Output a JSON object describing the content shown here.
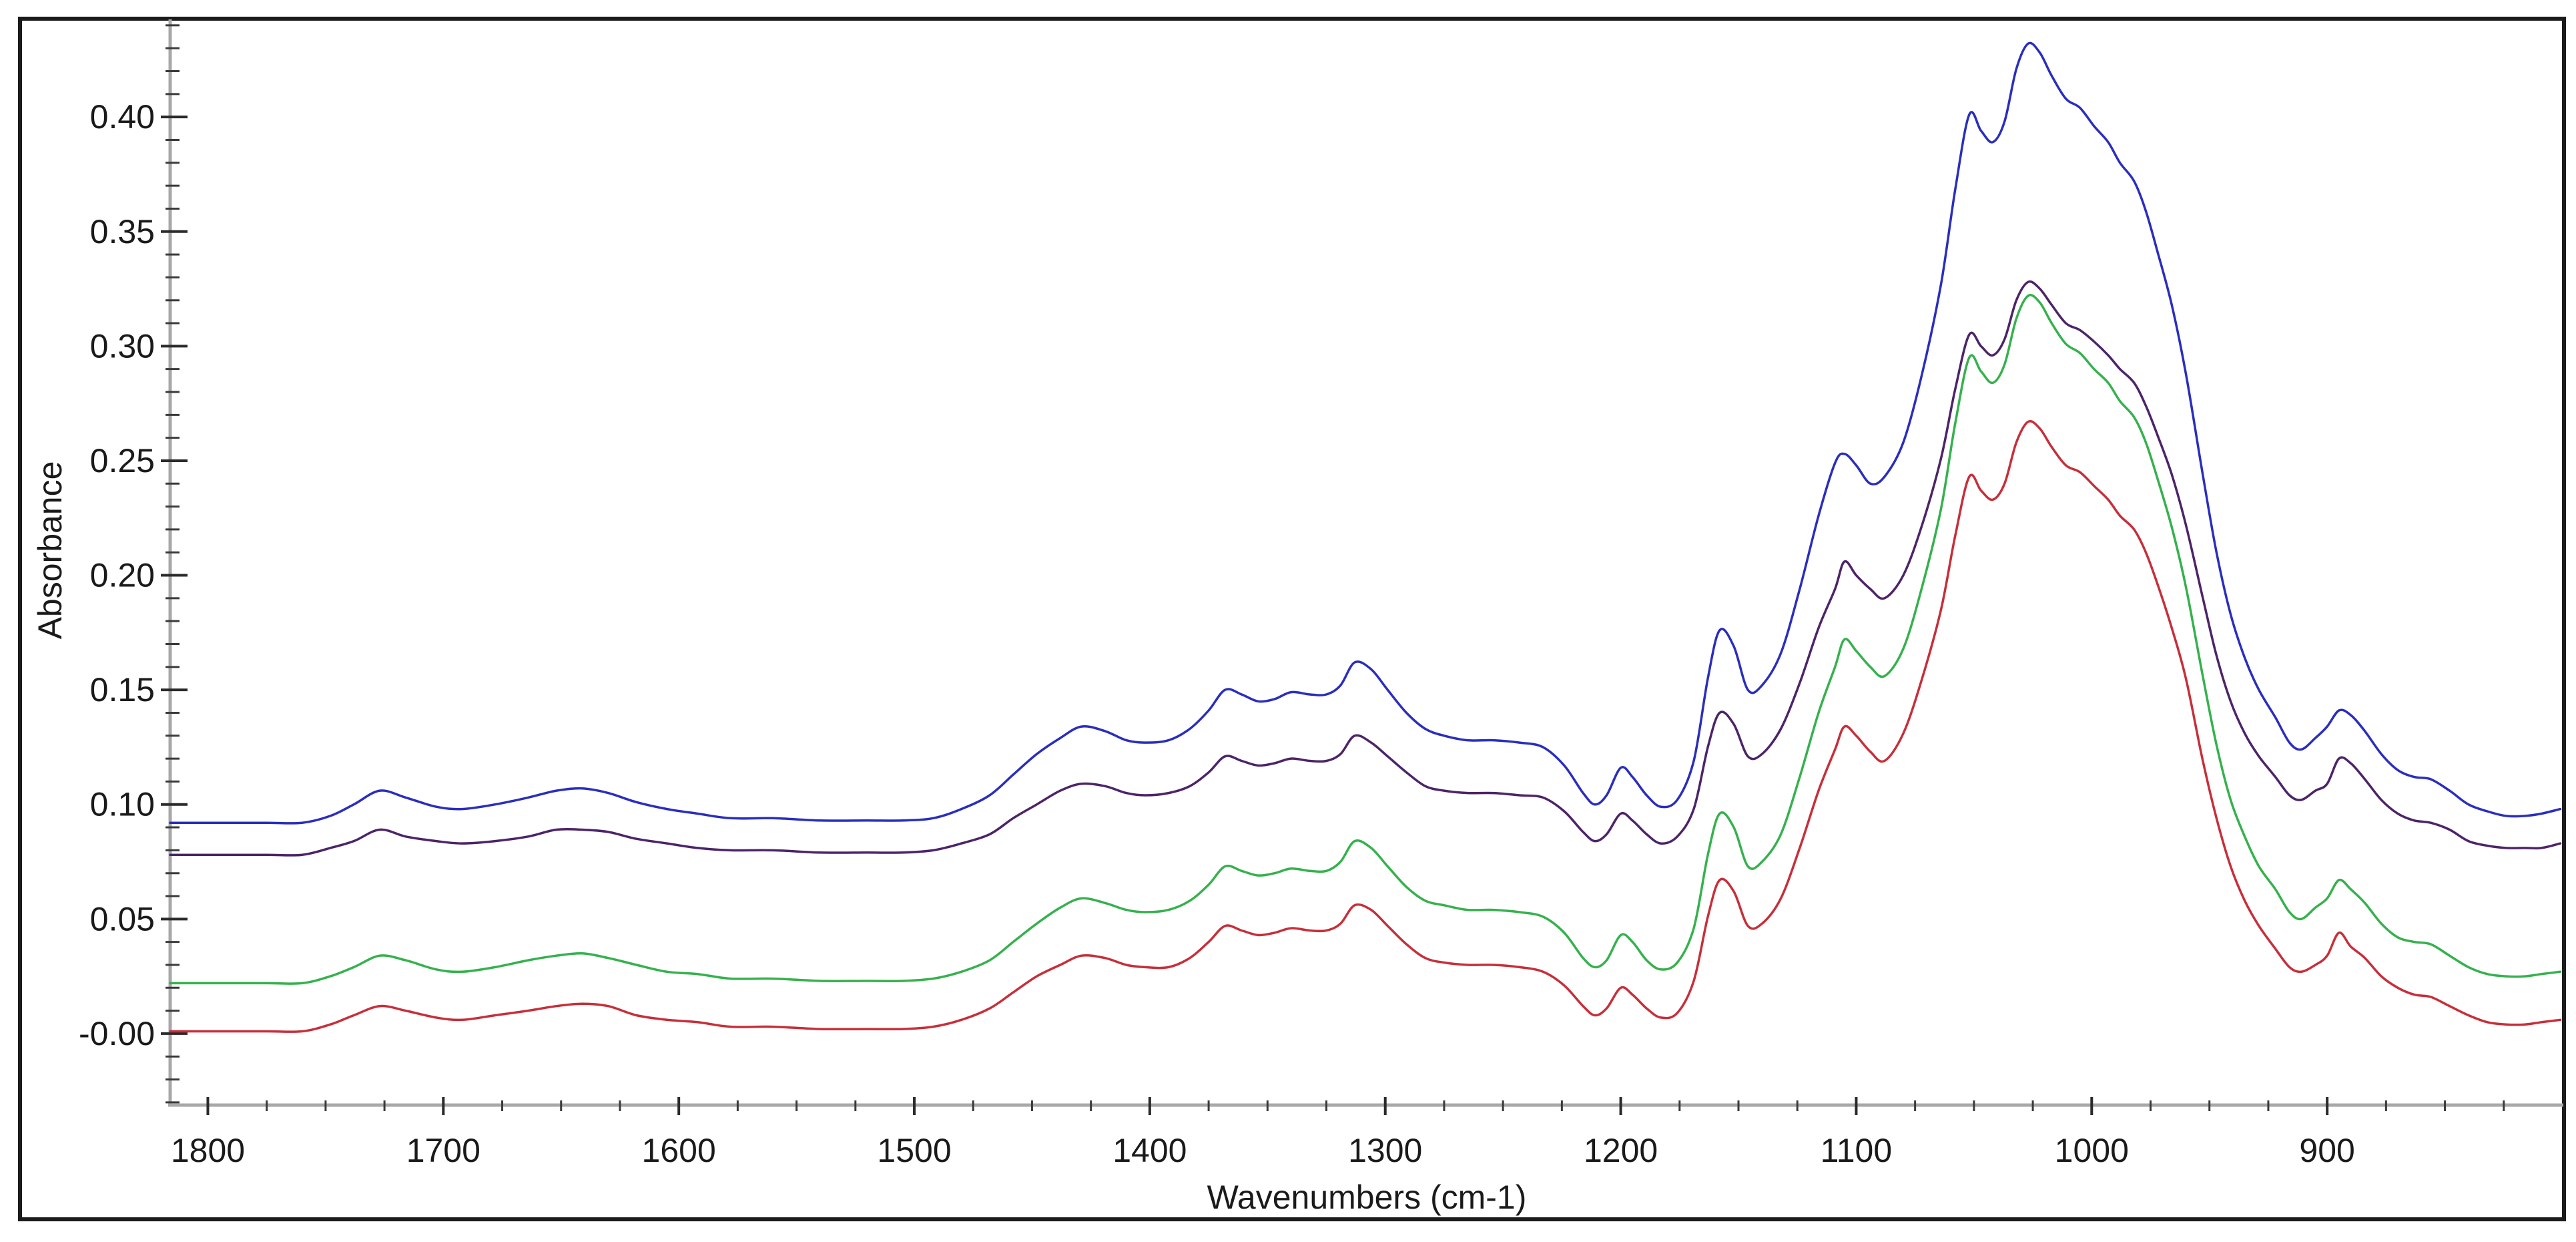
{
  "figure": {
    "xlabel": "Wavenumbers (cm-1)",
    "ylabel": "Absorbance",
    "background": "#ffffff",
    "border_color": "#1b1b1b",
    "axis_line_color": "#a8a8a8",
    "tick_color": "#2a2a2a",
    "label_color": "#1a1a1a"
  },
  "chart_data": {
    "type": "line",
    "title": "",
    "xlabel": "Wavenumbers (cm-1)",
    "ylabel": "Absorbance",
    "legend": "none",
    "grid": false,
    "x_axis_reversed": true,
    "x_range": [
      1816,
      800
    ],
    "y_range": [
      -0.0312,
      0.4423
    ],
    "x_ticks": [
      1800,
      1700,
      1600,
      1500,
      1400,
      1300,
      1200,
      1100,
      1000,
      900
    ],
    "x_tick_labels": [
      "1800",
      "1700",
      "1600",
      "1500",
      "1400",
      "1300",
      "1200",
      "1100",
      "1000",
      "900"
    ],
    "x_minor_step": 25,
    "y_ticks": [
      0.4,
      0.35,
      0.3,
      0.25,
      0.2,
      0.15,
      0.1,
      0.05,
      0.0
    ],
    "y_tick_labels": [
      "0.40",
      "0.35",
      "0.30",
      "0.25",
      "0.20",
      "0.15",
      "0.10",
      "0.05",
      "-0.00"
    ],
    "y_minor_step": 0.01,
    "x": [
      1816,
      1795,
      1775,
      1760,
      1748,
      1738,
      1727,
      1716,
      1703,
      1692,
      1678,
      1664,
      1652,
      1641,
      1630,
      1618,
      1605,
      1592,
      1578,
      1560,
      1540,
      1520,
      1505,
      1492,
      1480,
      1468,
      1458,
      1448,
      1438,
      1429,
      1419,
      1410,
      1402,
      1392,
      1383,
      1375,
      1368,
      1361,
      1354,
      1347,
      1340,
      1332,
      1325,
      1319,
      1313,
      1306,
      1299,
      1291,
      1283,
      1275,
      1265,
      1254,
      1243,
      1233,
      1224,
      1216,
      1211,
      1206,
      1200,
      1195,
      1189,
      1183,
      1176,
      1169,
      1163,
      1158,
      1152,
      1146,
      1140,
      1132,
      1124,
      1116,
      1109,
      1105,
      1100,
      1094,
      1088,
      1080,
      1072,
      1064,
      1058,
      1052,
      1047,
      1042,
      1037,
      1032,
      1027,
      1022,
      1017,
      1011,
      1005,
      999,
      993,
      988,
      982,
      977,
      972,
      966,
      960,
      953,
      947,
      941,
      935,
      929,
      922,
      916,
      911,
      905,
      900,
      895,
      890,
      884,
      877,
      870,
      863,
      856,
      848,
      840,
      832,
      824,
      816,
      809,
      801
    ],
    "series": [
      {
        "name": "blue",
        "color": "#2a2ebd",
        "values": [
          0.092,
          0.092,
          0.092,
          0.092,
          0.095,
          0.1,
          0.106,
          0.103,
          0.099,
          0.098,
          0.1,
          0.103,
          0.106,
          0.107,
          0.105,
          0.101,
          0.098,
          0.096,
          0.094,
          0.094,
          0.093,
          0.093,
          0.093,
          0.094,
          0.098,
          0.104,
          0.113,
          0.122,
          0.129,
          0.134,
          0.132,
          0.128,
          0.127,
          0.128,
          0.133,
          0.141,
          0.15,
          0.148,
          0.145,
          0.146,
          0.149,
          0.148,
          0.148,
          0.152,
          0.162,
          0.159,
          0.15,
          0.14,
          0.133,
          0.13,
          0.128,
          0.128,
          0.127,
          0.125,
          0.117,
          0.105,
          0.1,
          0.104,
          0.116,
          0.112,
          0.104,
          0.099,
          0.102,
          0.119,
          0.155,
          0.176,
          0.169,
          0.15,
          0.152,
          0.166,
          0.194,
          0.226,
          0.249,
          0.253,
          0.248,
          0.24,
          0.243,
          0.258,
          0.288,
          0.327,
          0.368,
          0.401,
          0.394,
          0.389,
          0.398,
          0.421,
          0.432,
          0.428,
          0.418,
          0.408,
          0.404,
          0.396,
          0.389,
          0.38,
          0.372,
          0.359,
          0.341,
          0.318,
          0.288,
          0.245,
          0.21,
          0.183,
          0.164,
          0.15,
          0.138,
          0.127,
          0.124,
          0.129,
          0.134,
          0.141,
          0.139,
          0.132,
          0.122,
          0.115,
          0.112,
          0.111,
          0.106,
          0.1,
          0.097,
          0.095,
          0.095,
          0.096,
          0.098
        ]
      },
      {
        "name": "purple",
        "color": "#4c2468",
        "values": [
          0.078,
          0.078,
          0.078,
          0.078,
          0.081,
          0.084,
          0.089,
          0.086,
          0.084,
          0.083,
          0.084,
          0.086,
          0.089,
          0.089,
          0.088,
          0.085,
          0.083,
          0.081,
          0.08,
          0.08,
          0.079,
          0.079,
          0.079,
          0.08,
          0.083,
          0.087,
          0.094,
          0.1,
          0.106,
          0.109,
          0.108,
          0.105,
          0.104,
          0.105,
          0.108,
          0.114,
          0.121,
          0.119,
          0.117,
          0.118,
          0.12,
          0.119,
          0.119,
          0.122,
          0.13,
          0.127,
          0.121,
          0.114,
          0.108,
          0.106,
          0.105,
          0.105,
          0.104,
          0.103,
          0.097,
          0.088,
          0.084,
          0.087,
          0.096,
          0.093,
          0.087,
          0.083,
          0.086,
          0.098,
          0.125,
          0.14,
          0.135,
          0.121,
          0.122,
          0.133,
          0.153,
          0.177,
          0.194,
          0.206,
          0.2,
          0.194,
          0.19,
          0.2,
          0.222,
          0.251,
          0.281,
          0.305,
          0.3,
          0.296,
          0.303,
          0.32,
          0.328,
          0.325,
          0.318,
          0.31,
          0.307,
          0.302,
          0.296,
          0.29,
          0.284,
          0.274,
          0.261,
          0.244,
          0.222,
          0.191,
          0.165,
          0.145,
          0.131,
          0.121,
          0.112,
          0.104,
          0.102,
          0.106,
          0.109,
          0.12,
          0.118,
          0.111,
          0.102,
          0.096,
          0.093,
          0.092,
          0.089,
          0.084,
          0.082,
          0.081,
          0.081,
          0.081,
          0.083
        ]
      },
      {
        "name": "green",
        "color": "#35b14d",
        "values": [
          0.022,
          0.022,
          0.022,
          0.022,
          0.025,
          0.029,
          0.034,
          0.032,
          0.028,
          0.027,
          0.029,
          0.032,
          0.034,
          0.035,
          0.033,
          0.03,
          0.027,
          0.026,
          0.024,
          0.024,
          0.023,
          0.023,
          0.023,
          0.024,
          0.027,
          0.032,
          0.04,
          0.048,
          0.055,
          0.059,
          0.057,
          0.054,
          0.053,
          0.054,
          0.058,
          0.065,
          0.073,
          0.071,
          0.069,
          0.07,
          0.072,
          0.071,
          0.071,
          0.075,
          0.084,
          0.081,
          0.073,
          0.064,
          0.058,
          0.056,
          0.054,
          0.054,
          0.053,
          0.051,
          0.044,
          0.033,
          0.029,
          0.032,
          0.043,
          0.04,
          0.032,
          0.028,
          0.031,
          0.046,
          0.078,
          0.096,
          0.09,
          0.073,
          0.075,
          0.087,
          0.112,
          0.14,
          0.16,
          0.172,
          0.167,
          0.16,
          0.156,
          0.168,
          0.195,
          0.229,
          0.266,
          0.295,
          0.289,
          0.284,
          0.292,
          0.312,
          0.322,
          0.319,
          0.31,
          0.301,
          0.297,
          0.29,
          0.284,
          0.276,
          0.269,
          0.258,
          0.242,
          0.221,
          0.195,
          0.157,
          0.126,
          0.102,
          0.086,
          0.073,
          0.063,
          0.053,
          0.05,
          0.055,
          0.059,
          0.067,
          0.063,
          0.057,
          0.048,
          0.042,
          0.04,
          0.039,
          0.034,
          0.029,
          0.026,
          0.025,
          0.025,
          0.026,
          0.027
        ]
      },
      {
        "name": "red",
        "color": "#c62f3a",
        "values": [
          0.001,
          0.001,
          0.001,
          0.001,
          0.004,
          0.008,
          0.012,
          0.01,
          0.007,
          0.006,
          0.008,
          0.01,
          0.012,
          0.013,
          0.012,
          0.008,
          0.006,
          0.005,
          0.003,
          0.003,
          0.002,
          0.002,
          0.002,
          0.003,
          0.006,
          0.011,
          0.018,
          0.025,
          0.03,
          0.034,
          0.033,
          0.03,
          0.029,
          0.029,
          0.033,
          0.04,
          0.047,
          0.045,
          0.043,
          0.044,
          0.046,
          0.045,
          0.045,
          0.048,
          0.056,
          0.054,
          0.047,
          0.039,
          0.033,
          0.031,
          0.03,
          0.03,
          0.029,
          0.027,
          0.021,
          0.012,
          0.008,
          0.011,
          0.02,
          0.017,
          0.011,
          0.007,
          0.009,
          0.023,
          0.051,
          0.067,
          0.062,
          0.047,
          0.048,
          0.059,
          0.081,
          0.106,
          0.124,
          0.134,
          0.13,
          0.123,
          0.119,
          0.131,
          0.155,
          0.185,
          0.217,
          0.243,
          0.237,
          0.233,
          0.24,
          0.258,
          0.267,
          0.264,
          0.256,
          0.248,
          0.245,
          0.239,
          0.233,
          0.226,
          0.22,
          0.21,
          0.196,
          0.177,
          0.155,
          0.12,
          0.094,
          0.073,
          0.058,
          0.047,
          0.037,
          0.029,
          0.027,
          0.03,
          0.034,
          0.044,
          0.038,
          0.033,
          0.025,
          0.02,
          0.017,
          0.016,
          0.012,
          0.008,
          0.005,
          0.004,
          0.004,
          0.005,
          0.006
        ]
      }
    ]
  }
}
